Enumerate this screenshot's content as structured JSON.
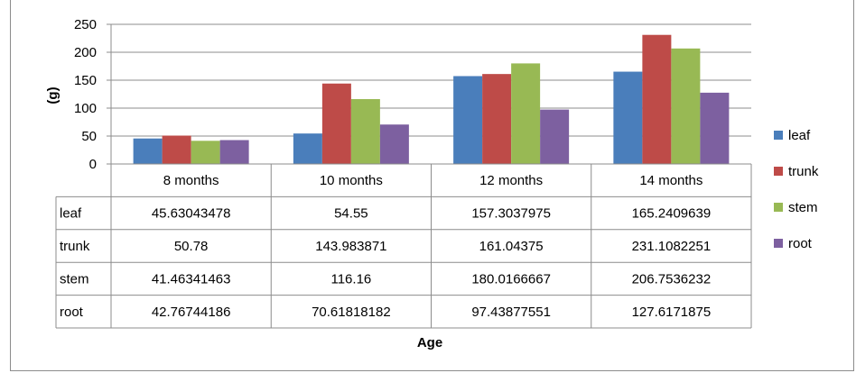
{
  "chart_data": {
    "type": "bar",
    "title": "",
    "xlabel": "Age",
    "ylabel": "(g)",
    "ylim": [
      0,
      250
    ],
    "yticks": [
      0,
      50,
      100,
      150,
      200,
      250
    ],
    "grid": true,
    "legend_position": "right",
    "categories": [
      "8 months",
      "10 months",
      "12 months",
      "14 months"
    ],
    "series": [
      {
        "name": "leaf",
        "color": "#4a7ebb",
        "values": [
          45.63043478,
          54.55,
          157.3037975,
          165.2409639
        ],
        "labels": [
          "45.63043478",
          "54.55",
          "157.3037975",
          "165.2409639"
        ]
      },
      {
        "name": "trunk",
        "color": "#be4b48",
        "values": [
          50.78,
          143.983871,
          161.04375,
          231.1082251
        ],
        "labels": [
          "50.78",
          "143.983871",
          "161.04375",
          "231.1082251"
        ]
      },
      {
        "name": "stem",
        "color": "#98b954",
        "values": [
          41.46341463,
          116.16,
          180.0166667,
          206.7536232
        ],
        "labels": [
          "41.46341463",
          "116.16",
          "180.0166667",
          "206.7536232"
        ]
      },
      {
        "name": "root",
        "color": "#7d60a0",
        "values": [
          42.76744186,
          70.61818182,
          97.43877551,
          127.6171875
        ],
        "labels": [
          "42.76744186",
          "70.61818182",
          "97.43877551",
          "127.6171875"
        ]
      }
    ]
  }
}
